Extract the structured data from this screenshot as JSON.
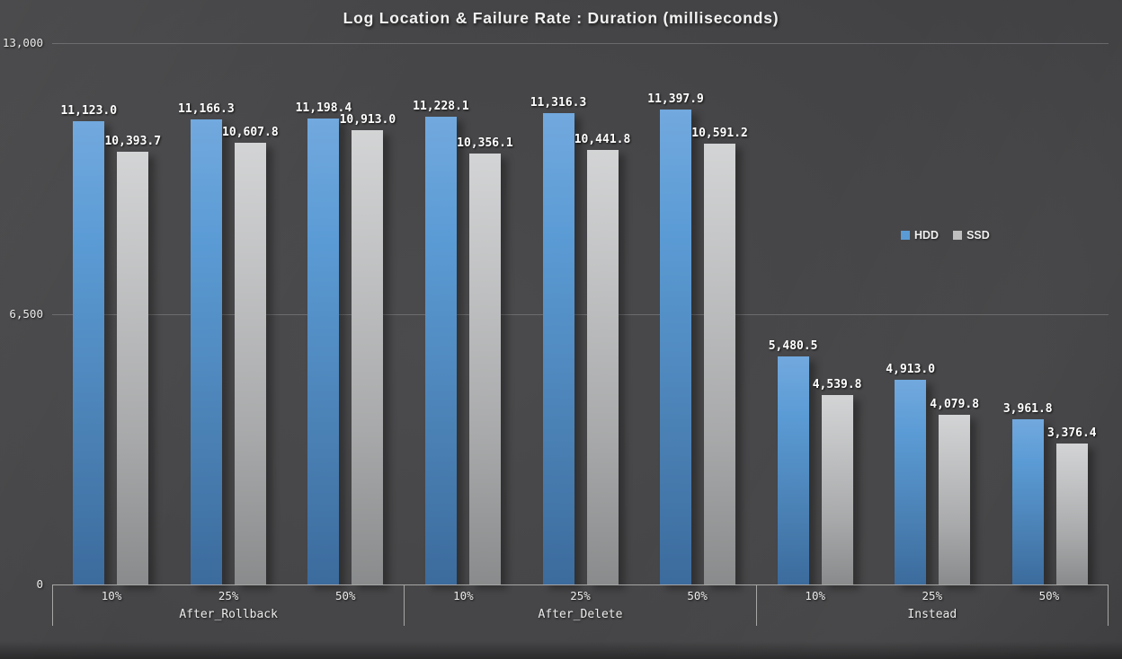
{
  "chart_data": {
    "type": "bar",
    "title": "Log Location & Failure Rate : Duration (milliseconds)",
    "xlabel": "",
    "ylabel": "",
    "ylim": [
      0,
      13000
    ],
    "grid": true,
    "legend_position": "right-middle",
    "background_color": "#434345",
    "yticks": [
      {
        "value": 13000,
        "label": "13,000"
      },
      {
        "value": 6500,
        "label": "6,500"
      },
      {
        "value": 0,
        "label": "0"
      }
    ],
    "groups": [
      {
        "label": "After_Rollback",
        "categories": [
          "10%",
          "25%",
          "50%"
        ]
      },
      {
        "label": "After_Delete",
        "categories": [
          "10%",
          "25%",
          "50%"
        ]
      },
      {
        "label": "Instead",
        "categories": [
          "10%",
          "25%",
          "50%"
        ]
      }
    ],
    "series": [
      {
        "name": "HDD",
        "color": "#5B9BD5",
        "values": [
          [
            11123.0,
            11166.3,
            11198.4
          ],
          [
            11228.1,
            11316.3,
            11397.9
          ],
          [
            5480.5,
            4913.0,
            3961.8
          ]
        ]
      },
      {
        "name": "SSD",
        "color": "#BFBFBF",
        "values": [
          [
            10393.7,
            10607.8,
            10913.0
          ],
          [
            10356.1,
            10441.8,
            10591.2
          ],
          [
            4539.8,
            4079.8,
            3376.4
          ]
        ]
      }
    ],
    "data_label_format": "#,##0.0"
  }
}
